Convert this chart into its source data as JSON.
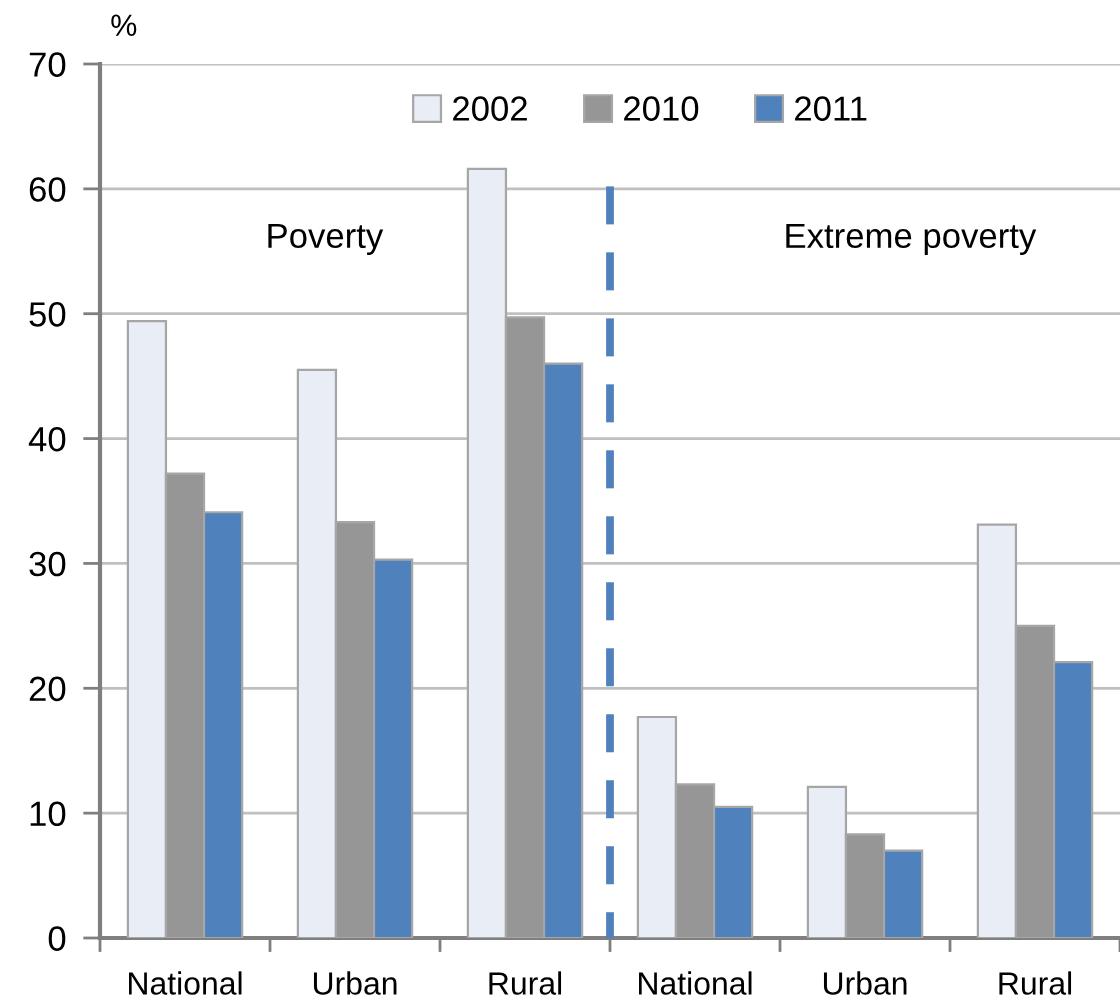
{
  "chart_data": {
    "type": "bar",
    "ylabel": "%",
    "categories": [
      "National",
      "Urban",
      "Rural",
      "National",
      "Urban",
      "Rural"
    ],
    "series": [
      {
        "name": "2002",
        "color": "#e9edf6",
        "values": [
          49.4,
          45.5,
          61.6,
          17.7,
          12.1,
          33.1
        ]
      },
      {
        "name": "2010",
        "color": "#969696",
        "values": [
          37.2,
          33.3,
          49.7,
          12.3,
          8.3,
          25.0
        ]
      },
      {
        "name": "2011",
        "color": "#4f81bd",
        "values": [
          34.1,
          30.3,
          46.0,
          10.5,
          7.0,
          22.1
        ]
      }
    ],
    "ylim": [
      0,
      70
    ],
    "yticks": [
      0,
      10,
      20,
      30,
      40,
      50,
      60,
      70
    ],
    "grid": "y",
    "legend": "top",
    "annotations": [
      "Poverty",
      "Extreme poverty"
    ]
  }
}
